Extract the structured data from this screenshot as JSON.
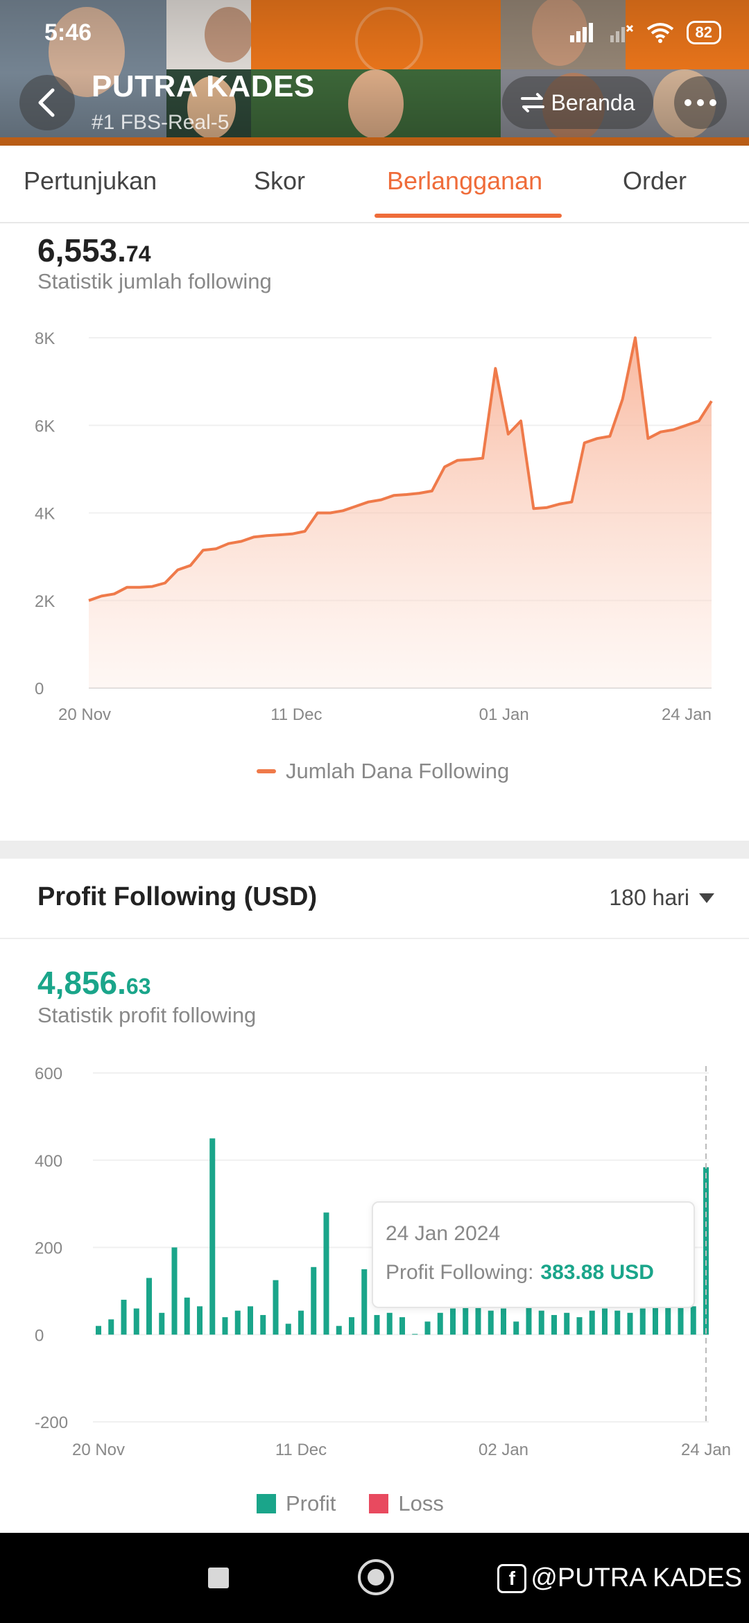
{
  "status_bar": {
    "time": "5:46",
    "battery": "82"
  },
  "header": {
    "account_name": "PUTRA KADES",
    "account_sub": "#1  FBS-Real-5",
    "beranda_label": "Beranda"
  },
  "tabs": [
    {
      "label": "Pertunjukan"
    },
    {
      "label": "Skor"
    },
    {
      "label": "Berlangganan"
    },
    {
      "label": "Order"
    }
  ],
  "following": {
    "amount_int": "6,553.",
    "amount_dec": "74",
    "label": "Statistik jumlah following",
    "legend": "Jumlah Dana Following",
    "color": "#ef7a4a"
  },
  "profit": {
    "section_title": "Profit Following (USD)",
    "period": "180 hari",
    "amount_int": "4,856.",
    "amount_dec": "63",
    "label": "Statistik profit following",
    "legend_profit": "Profit",
    "legend_loss": "Loss",
    "profit_color": "#1aa58a",
    "loss_color": "#e84a5f",
    "tooltip_date": "24 Jan 2024",
    "tooltip_label": "Profit Following:",
    "tooltip_value": "383.88 USD"
  },
  "watermark": "@PUTRA KADES",
  "chart_data": [
    {
      "type": "area",
      "title": "",
      "series": [
        {
          "name": "Jumlah Dana Following",
          "values": [
            2000,
            2100,
            2150,
            2300,
            2300,
            2320,
            2400,
            2700,
            2800,
            3150,
            3180,
            3300,
            3350,
            3450,
            3480,
            3500,
            3520,
            3580,
            4000,
            4000,
            4050,
            4150,
            4250,
            4300,
            4400,
            4420,
            4450,
            4500,
            5050,
            5200,
            5220,
            5250,
            7300,
            5800,
            6100,
            4100,
            4120,
            4200,
            4250,
            5600,
            5700,
            5750,
            6600,
            8000,
            5700,
            5850,
            5900,
            6000,
            6100,
            6554
          ]
        }
      ],
      "x_tick_labels": [
        "20 Nov",
        "11 Dec",
        "01 Jan",
        "24 Jan"
      ],
      "y_tick_labels": [
        "0",
        "2K",
        "4K",
        "6K",
        "8K"
      ],
      "ylim": [
        0,
        8000
      ],
      "grid": true,
      "legend_position": "bottom"
    },
    {
      "type": "bar",
      "title": "",
      "series": [
        {
          "name": "Profit",
          "values": [
            20,
            35,
            80,
            60,
            130,
            50,
            200,
            85,
            65,
            450,
            40,
            55,
            65,
            45,
            125,
            25,
            55,
            155,
            280,
            20,
            40,
            150,
            45,
            50,
            40,
            0,
            30,
            50,
            60,
            65,
            70,
            55,
            60,
            30,
            65,
            55,
            45,
            50,
            40,
            55,
            60,
            55,
            50,
            60,
            65,
            70,
            75,
            65,
            383.88
          ]
        },
        {
          "name": "Loss",
          "values": []
        }
      ],
      "x_tick_labels": [
        "20 Nov",
        "11 Dec",
        "02 Jan",
        "24 Jan"
      ],
      "y_tick_labels": [
        "-200",
        "0",
        "200",
        "400",
        "600"
      ],
      "ylim": [
        -200,
        600
      ],
      "grid": true,
      "legend_position": "bottom"
    }
  ]
}
